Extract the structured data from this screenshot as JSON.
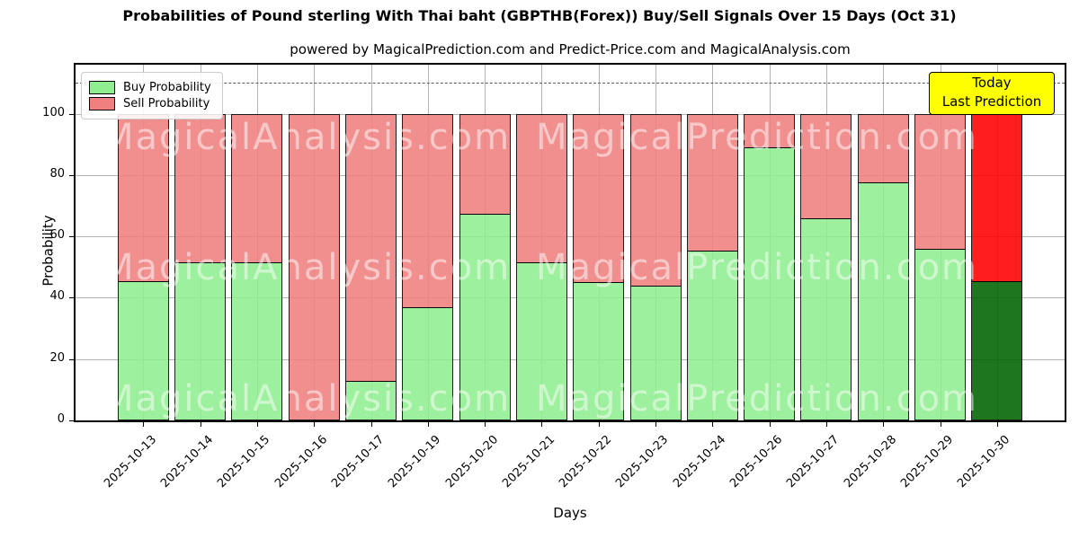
{
  "title": "Probabilities of Pound sterling With Thai baht (GBPTHB(Forex)) Buy/Sell Signals Over 15 Days (Oct 31)",
  "subtitle": "powered by MagicalPrediction.com and Predict-Price.com and MagicalAnalysis.com",
  "watermark": {
    "left_text": "MagicalAnalysis.com",
    "right_text": "MagicalPrediction.com"
  },
  "legend": {
    "items": [
      {
        "label": "Buy Probability",
        "color": "#90EE90"
      },
      {
        "label": "Sell Probability",
        "color": "#F08080"
      }
    ]
  },
  "annotation_box": {
    "line1": "Today",
    "line2": "Last Prediction",
    "bg_color": "#FFFF00"
  },
  "axes": {
    "xlabel": "Days",
    "ylabel": "Probability",
    "yticks": [
      0,
      20,
      40,
      60,
      80,
      100
    ]
  },
  "chart_data": {
    "type": "bar",
    "stacked": true,
    "grid": true,
    "legend_position": "upper left",
    "ylim": [
      0,
      116
    ],
    "dashed_reference_line_y": 110,
    "categories": [
      "2025-10-13",
      "2025-10-14",
      "2025-10-15",
      "2025-10-16",
      "2025-10-17",
      "2025-10-19",
      "2025-10-20",
      "2025-10-21",
      "2025-10-22",
      "2025-10-23",
      "2025-10-24",
      "2025-10-26",
      "2025-10-27",
      "2025-10-28",
      "2025-10-29",
      "2025-10-30"
    ],
    "series": [
      {
        "name": "Buy Probability",
        "color": "#90EE90",
        "values": [
          45.5,
          51.5,
          51.5,
          0,
          13,
          37,
          67.5,
          51.5,
          45,
          44,
          55.5,
          89,
          66,
          77.5,
          56,
          45.5
        ]
      },
      {
        "name": "Sell Probability",
        "color": "#F08080",
        "values": [
          54.5,
          48.5,
          48.5,
          100,
          87,
          63,
          32.5,
          48.5,
          55,
          56,
          44.5,
          11,
          34,
          22.5,
          44,
          54.5
        ]
      }
    ],
    "today_index": 15,
    "today_colors": {
      "buy": "#006400",
      "sell": "#FF0000"
    }
  }
}
